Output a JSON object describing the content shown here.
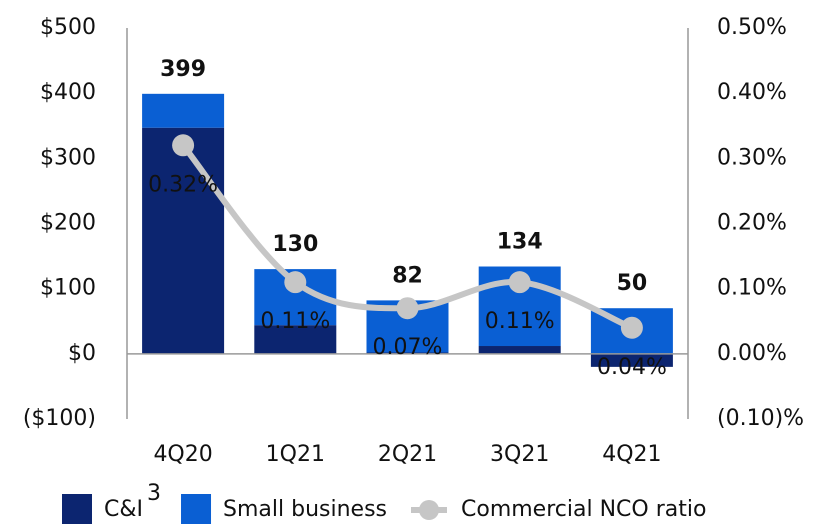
{
  "chart_data": {
    "type": "stacked_bar_line",
    "categories": [
      "4Q20",
      "1Q21",
      "2Q21",
      "3Q21",
      "4Q21"
    ],
    "series": [
      {
        "name": "C&I",
        "superscript": "3",
        "color": "#0c2570",
        "values": [
          347,
          44,
          2,
          12,
          -20
        ]
      },
      {
        "name": "Small business",
        "color": "#0a5fd3",
        "values": [
          52,
          86,
          80,
          122,
          70
        ]
      },
      {
        "name": "Commercial NCO ratio",
        "color": "#c6c6c6",
        "axis": "y2",
        "values": [
          0.32,
          0.11,
          0.07,
          0.11,
          0.04
        ],
        "value_labels": [
          "0.32%",
          "0.11%",
          "0.07%",
          "0.11%",
          "0.04%"
        ]
      }
    ],
    "totals": [
      399,
      130,
      82,
      134,
      50
    ],
    "total_labels": [
      "$399",
      "$130",
      "$82",
      "$134",
      "$50"
    ],
    "ylim": [
      -100,
      500
    ],
    "yticks": [
      {
        "value": -100,
        "label": "($100)"
      },
      {
        "value": 0,
        "label": "$0"
      },
      {
        "value": 100,
        "label": "$100"
      },
      {
        "value": 200,
        "label": "$200"
      },
      {
        "value": 300,
        "label": "$300"
      },
      {
        "value": 400,
        "label": "$400"
      },
      {
        "value": 500,
        "label": "$500"
      }
    ],
    "y2lim": [
      -0.1,
      0.5
    ],
    "y2ticks": [
      {
        "value": -0.1,
        "label": "(0.10)%"
      },
      {
        "value": 0,
        "label": "0.00%"
      },
      {
        "value": 0.1,
        "label": "0.10%"
      },
      {
        "value": 0.2,
        "label": "0.20%"
      },
      {
        "value": 0.3,
        "label": "0.30%"
      },
      {
        "value": 0.4,
        "label": "0.40%"
      },
      {
        "value": 0.5,
        "label": "0.50%"
      }
    ],
    "legend": "bottom"
  }
}
